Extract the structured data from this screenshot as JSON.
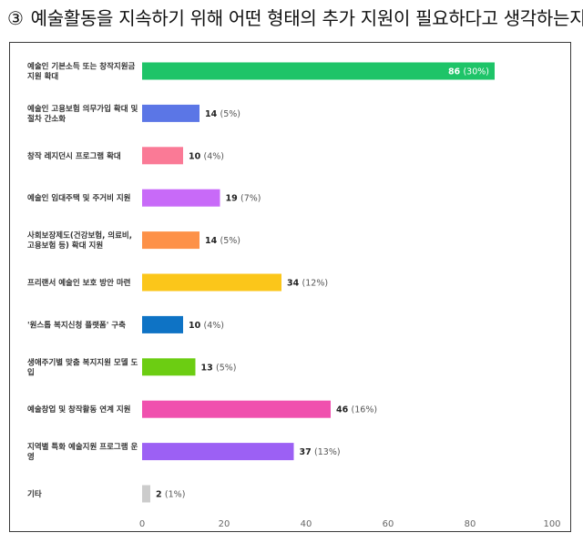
{
  "heading": {
    "number": "③",
    "text": "예술활동을 지속하기 위해 어떤 형태의 추가 지원이 필요하다고 생각하는지"
  },
  "chart_data": {
    "type": "bar",
    "orientation": "horizontal",
    "categories": [
      "예술인 기본소득 또는 창작지원금 지원 확대",
      "예술인 고용보험 의무가입 확대 및 절차 간소화",
      "창작 레지던시 프로그램 확대",
      "예술인 임대주택 및 주거비 지원",
      "사회보장제도(건강보험, 의료비, 고용보험 등) 확대 지원",
      "프리랜서 예술인 보호 방안 마련",
      "'원스톱 복지신청 플랫폼' 구축",
      "생애주기별 맞춤 복지지원 모델 도입",
      "예술창업 및 창작활동 연계 지원",
      "지역별 특화 예술지원 프로그램 운영",
      "기타"
    ],
    "category_lines": [
      [
        "예술인 기본소득 또는 창작지원금",
        "지원 확대"
      ],
      [
        "예술인 고용보험 의무가입 확대 및",
        "절차 간소화"
      ],
      [
        "창작 레지던시 프로그램 확대"
      ],
      [
        "예술인 임대주택 및 주거비 지원"
      ],
      [
        "사회보장제도(건강보험, 의료비,",
        "고용보험 등) 확대 지원"
      ],
      [
        "프리랜서 예술인 보호 방안 마련"
      ],
      [
        "'원스톱 복지신청 플랫폼' 구축"
      ],
      [
        "생애주기별 맞춤 복지지원 모델 도",
        "입"
      ],
      [
        "예술창업 및 창작활동 연계 지원"
      ],
      [
        "지역별 특화 예술지원 프로그램 운",
        "영"
      ],
      [
        "기타"
      ]
    ],
    "values": [
      86,
      14,
      10,
      19,
      14,
      34,
      10,
      13,
      46,
      37,
      2
    ],
    "percent_labels": [
      "(30%)",
      "(5%)",
      "(4%)",
      "(7%)",
      "(5%)",
      "(12%)",
      "(4%)",
      "(5%)",
      "(16%)",
      "(13%)",
      "(1%)"
    ],
    "colors": [
      "#1ec468",
      "#5b76e6",
      "#fa7a96",
      "#c86af8",
      "#fd9148",
      "#fbc61a",
      "#0e73c5",
      "#6ccd12",
      "#f050ae",
      "#9c60f4",
      "#cccccc"
    ],
    "xlim": [
      0,
      100
    ],
    "xticks": [
      "0",
      "20",
      "40",
      "60",
      "80",
      "100"
    ],
    "grid": false,
    "legend": "none",
    "title": "",
    "xlabel": "",
    "ylabel": ""
  }
}
